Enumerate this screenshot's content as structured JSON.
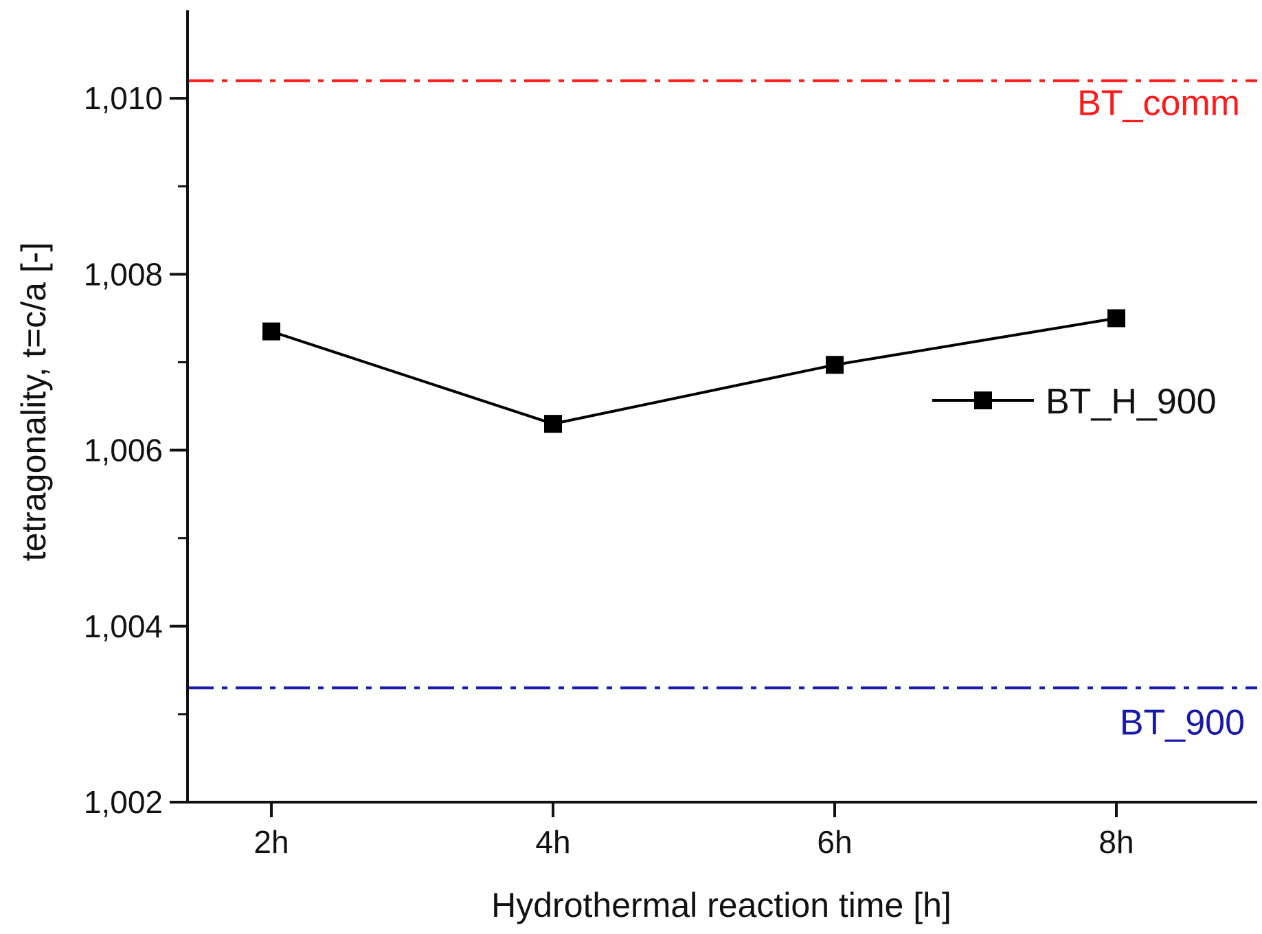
{
  "chart_data": {
    "type": "line",
    "xlabel": "Hydrothermal reaction time [h]",
    "ylabel": "tetragonality, t=c/a [-]",
    "categories": [
      "2h",
      "4h",
      "6h",
      "8h"
    ],
    "ylim": [
      1.002,
      1.011
    ],
    "yticks": [
      1.002,
      1.004,
      1.006,
      1.008,
      1.01
    ],
    "ytick_labels": [
      "1,002",
      "1,004",
      "1,006",
      "1,008",
      "1,010"
    ],
    "series": [
      {
        "name": "BT_H_900",
        "values": [
          1.00735,
          1.0063,
          1.00697,
          1.0075
        ],
        "color": "#000000",
        "marker": "square"
      }
    ],
    "reference_lines": [
      {
        "name": "BT_comm",
        "value": 1.0102,
        "color": "#ff1a1a",
        "style": "dash-dot"
      },
      {
        "name": "BT_900",
        "value": 1.0033,
        "color": "#1a1aaa",
        "style": "dash-dot"
      }
    ],
    "legend_position": "right"
  }
}
